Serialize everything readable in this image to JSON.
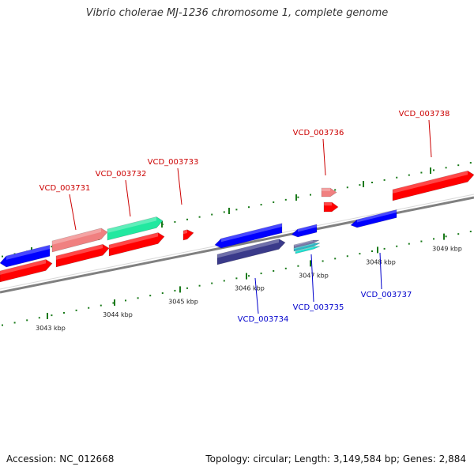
{
  "title": "Vibrio cholerae MJ-1236 chromosome 1, complete genome",
  "footer": {
    "accession": "Accession: NC_012668",
    "topology": "Topology: circular; Length: 3,149,584 bp; Genes: 2,884"
  },
  "colors": {
    "forward_strand": "#ff0000",
    "forward_strand_light": "#f08080",
    "reverse_strand": "#0000ff",
    "reverse_strand_dark": "#3a3a8a",
    "rna_feature": "#22e8a0",
    "label_forward": "#cc0000",
    "label_reverse": "#0000cc",
    "backbone": "#808080",
    "tick": "#1a7a1a"
  },
  "scale": {
    "lower_track_ticks": [
      "3043 kbp",
      "3044 kbp",
      "3045 kbp",
      "3046 kbp",
      "3047 kbp",
      "3048 kbp",
      "3049 kbp"
    ]
  },
  "genes": {
    "forward": [
      "VCD_003731",
      "VCD_003732",
      "VCD_003733",
      "VCD_003736",
      "VCD_003738"
    ],
    "reverse": [
      "VCD_003734",
      "VCD_003735",
      "VCD_003737"
    ]
  }
}
